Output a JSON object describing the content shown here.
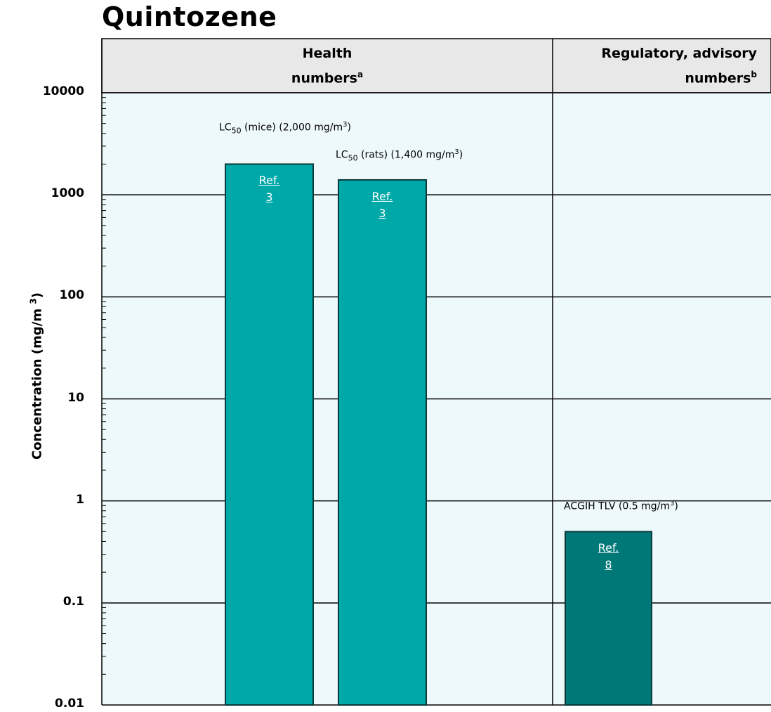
{
  "title": "Quintozene",
  "chart_data": {
    "type": "bar",
    "title": "Quintozene",
    "ylabel": "Concentration (mg/m 3)",
    "yscale": "log",
    "ylim": [
      0.01,
      10000
    ],
    "y_ticks": [
      "10000",
      "1000",
      "100",
      "10",
      "1",
      "0.1",
      "0.01"
    ],
    "grid": true,
    "groups": [
      {
        "label": "Health numbers",
        "superscript": "a"
      },
      {
        "label": "Regulatory, advisory numbers",
        "superscript": "b"
      }
    ],
    "series": [
      {
        "label_prefix": "LC",
        "label_sub": "50",
        "label_text": " (mice) (2,000 mg/m",
        "label_sup": "3",
        "label_close": ")",
        "value": 2000,
        "ref_link": "Ref.",
        "ref_num": "3",
        "group": 0,
        "color": "#00a8a8"
      },
      {
        "label_prefix": "LC",
        "label_sub": "50",
        "label_text": " (rats) (1,400 mg/m",
        "label_sup": "3",
        "label_close": ")",
        "value": 1400,
        "ref_link": "Ref.",
        "ref_num": "3",
        "group": 0,
        "color": "#00a8a8"
      },
      {
        "label_prefix": "ACGIH TLV",
        "label_sub": "",
        "label_text": " (0.5 mg/m",
        "label_sup": "3",
        "label_close": ")",
        "value": 0.5,
        "ref_link": "Ref.",
        "ref_num": "8",
        "group": 1,
        "color": "#007878"
      }
    ],
    "colors": {
      "header_bg": "#e8e8e8",
      "plot_bg": "#eef9fc",
      "health_bar": "#00a8a8",
      "regulatory_bar": "#007878"
    }
  }
}
